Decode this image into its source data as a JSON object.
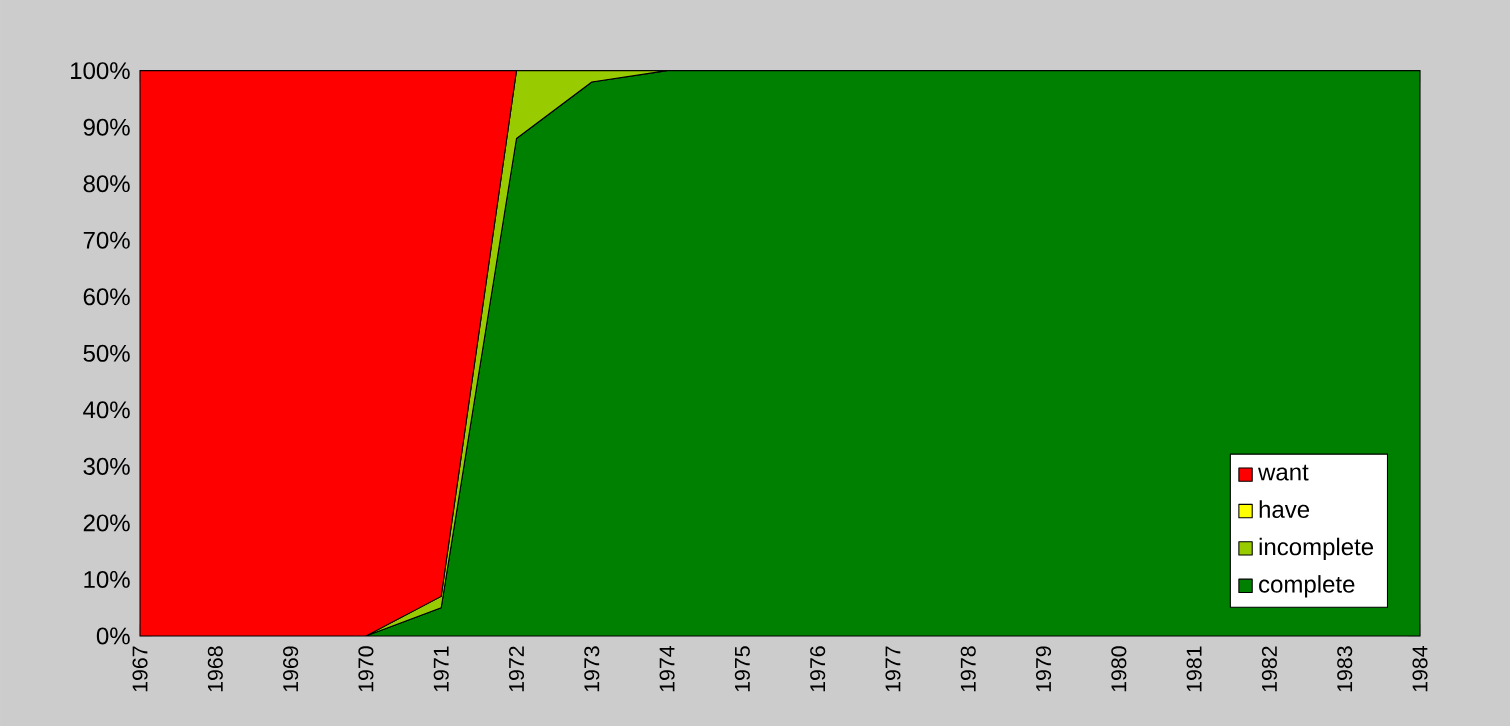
{
  "chart_data": {
    "type": "area",
    "stacked": true,
    "categories": [
      "1967",
      "1968",
      "1969",
      "1970",
      "1971",
      "1972",
      "1973",
      "1974",
      "1975",
      "1976",
      "1977",
      "1978",
      "1979",
      "1980",
      "1981",
      "1982",
      "1983",
      "1984"
    ],
    "series": [
      {
        "name": "complete",
        "color": "#008000",
        "values": [
          null,
          null,
          null,
          0,
          5,
          88,
          98,
          100,
          100,
          100,
          100,
          100,
          100,
          100,
          100,
          100,
          100,
          100
        ]
      },
      {
        "name": "incomplete",
        "color": "#99cc00",
        "values": [
          null,
          null,
          null,
          0,
          2,
          12,
          2,
          0,
          null,
          null,
          null,
          null,
          null,
          null,
          null,
          null,
          null,
          null
        ]
      },
      {
        "name": "have",
        "color": "#ffff00",
        "values": [
          null,
          null,
          null,
          null,
          null,
          null,
          null,
          null,
          null,
          null,
          null,
          null,
          null,
          null,
          null,
          null,
          null,
          null
        ]
      },
      {
        "name": "want",
        "color": "#ff0000",
        "values": [
          100,
          100,
          100,
          100,
          93,
          0,
          null,
          null,
          null,
          null,
          null,
          null,
          null,
          null,
          null,
          null,
          null,
          null
        ]
      }
    ],
    "ylim": [
      0,
      100
    ],
    "yticks": [
      {
        "value": 0,
        "label": "0%"
      },
      {
        "value": 10,
        "label": "10%"
      },
      {
        "value": 20,
        "label": "20%"
      },
      {
        "value": 30,
        "label": "30%"
      },
      {
        "value": 40,
        "label": "40%"
      },
      {
        "value": 50,
        "label": "50%"
      },
      {
        "value": 60,
        "label": "60%"
      },
      {
        "value": 70,
        "label": "70%"
      },
      {
        "value": 80,
        "label": "80%"
      },
      {
        "value": 90,
        "label": "90%"
      },
      {
        "value": 100,
        "label": "100%"
      }
    ],
    "legend": "bottom right"
  }
}
